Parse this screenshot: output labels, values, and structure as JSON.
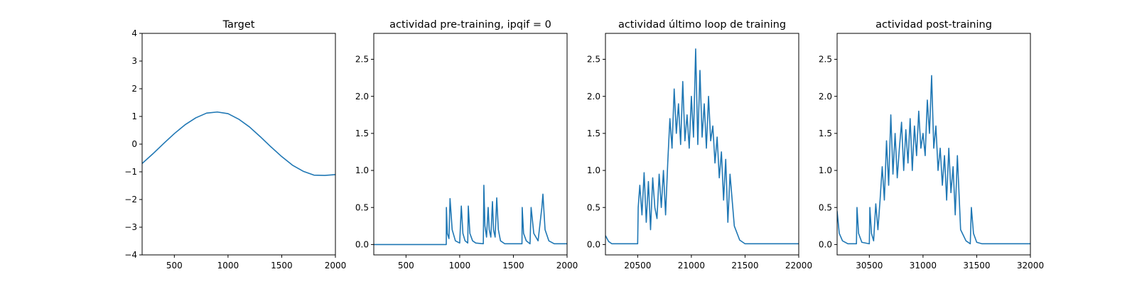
{
  "chart_data": [
    {
      "type": "line",
      "title": "Target",
      "xlim": [
        200,
        2000
      ],
      "ylim": [
        -4,
        4
      ],
      "xticks": [
        500,
        1000,
        1500,
        2000
      ],
      "yticks": [
        -4,
        -3,
        -2,
        -1,
        0,
        1,
        2,
        3,
        4
      ],
      "color": "#1f77b4",
      "series": [
        {
          "x": [
            200,
            300,
            400,
            500,
            600,
            700,
            800,
            900,
            1000,
            1100,
            1200,
            1300,
            1400,
            1500,
            1600,
            1700,
            1800,
            1900,
            2000
          ],
          "values": [
            -0.7,
            -0.35,
            0.02,
            0.38,
            0.7,
            0.95,
            1.12,
            1.16,
            1.1,
            0.9,
            0.62,
            0.27,
            -0.1,
            -0.45,
            -0.76,
            -0.98,
            -1.12,
            -1.13,
            -1.1
          ]
        }
      ]
    },
    {
      "type": "line",
      "title": "actividad pre-training, ipqif = 0",
      "xlim": [
        200,
        2000
      ],
      "ylim": [
        -0.14,
        2.85
      ],
      "xticks": [
        500,
        1000,
        1500,
        2000
      ],
      "yticks": [
        0.0,
        0.5,
        1.0,
        1.5,
        2.0,
        2.5
      ],
      "ytick_labels": [
        "0.0",
        "0.5",
        "1.0",
        "1.5",
        "2.0",
        "2.5"
      ],
      "color": "#1f77b4",
      "series": [
        {
          "x": [
            200,
            875,
            876,
            885,
            900,
            910,
            930,
            960,
            1000,
            1015,
            1030,
            1050,
            1075,
            1080,
            1095,
            1120,
            1150,
            1220,
            1225,
            1235,
            1250,
            1265,
            1275,
            1290,
            1305,
            1315,
            1330,
            1345,
            1360,
            1380,
            1420,
            1580,
            1582,
            1595,
            1620,
            1655,
            1665,
            1690,
            1730,
            1765,
            1775,
            1795,
            1830,
            1880,
            2000
          ],
          "values": [
            0,
            0,
            0.5,
            0.15,
            0.08,
            0.62,
            0.2,
            0.05,
            0.02,
            0.52,
            0.15,
            0.05,
            0.02,
            0.52,
            0.15,
            0.05,
            0.02,
            0.01,
            0.8,
            0.25,
            0.1,
            0.5,
            0.2,
            0.1,
            0.58,
            0.2,
            0.1,
            0.63,
            0.2,
            0.05,
            0.01,
            0.01,
            0.5,
            0.15,
            0.05,
            0.01,
            0.5,
            0.15,
            0.05,
            0.5,
            0.68,
            0.2,
            0.05,
            0.01,
            0.01
          ]
        }
      ]
    },
    {
      "type": "line",
      "title": "actividad último loop de training",
      "xlim": [
        20200,
        22000
      ],
      "ylim": [
        -0.14,
        2.85
      ],
      "xticks": [
        20500,
        21000,
        21500,
        22000
      ],
      "yticks": [
        0.0,
        0.5,
        1.0,
        1.5,
        2.0,
        2.5
      ],
      "ytick_labels": [
        "0.0",
        "0.5",
        "1.0",
        "1.5",
        "2.0",
        "2.5"
      ],
      "color": "#1f77b4",
      "series": [
        {
          "x": [
            20200,
            20230,
            20260,
            20300,
            20500,
            20505,
            20520,
            20540,
            20560,
            20580,
            20600,
            20620,
            20640,
            20660,
            20680,
            20700,
            20720,
            20740,
            20760,
            20780,
            20800,
            20820,
            20840,
            20860,
            20880,
            20900,
            20920,
            20940,
            20960,
            20980,
            21000,
            21020,
            21040,
            21060,
            21080,
            21100,
            21120,
            21140,
            21160,
            21180,
            21200,
            21220,
            21240,
            21260,
            21280,
            21300,
            21320,
            21340,
            21360,
            21400,
            21450,
            21500,
            22000
          ],
          "values": [
            0.12,
            0.04,
            0.01,
            0.01,
            0.01,
            0.5,
            0.8,
            0.4,
            0.97,
            0.3,
            0.85,
            0.2,
            0.9,
            0.5,
            0.35,
            0.95,
            0.5,
            1.0,
            0.4,
            1.1,
            1.7,
            1.3,
            2.1,
            1.5,
            1.9,
            1.35,
            2.2,
            1.4,
            1.75,
            1.3,
            2.0,
            1.45,
            2.64,
            1.35,
            2.35,
            1.45,
            1.9,
            1.3,
            2.0,
            1.4,
            1.6,
            1.1,
            1.45,
            0.9,
            1.25,
            0.6,
            1.15,
            0.3,
            0.95,
            0.25,
            0.06,
            0.01,
            0.01
          ]
        }
      ]
    },
    {
      "type": "line",
      "title": "actividad post-training",
      "xlim": [
        30200,
        32000
      ],
      "ylim": [
        -0.14,
        2.85
      ],
      "xticks": [
        30500,
        31000,
        31500,
        32000
      ],
      "yticks": [
        0.0,
        0.5,
        1.0,
        1.5,
        2.0,
        2.5
      ],
      "ytick_labels": [
        "0.0",
        "0.5",
        "1.0",
        "1.5",
        "2.0",
        "2.5"
      ],
      "color": "#1f77b4",
      "series": [
        {
          "x": [
            30200,
            30220,
            30250,
            30300,
            30380,
            30385,
            30400,
            30430,
            30500,
            30505,
            30520,
            30540,
            30560,
            30580,
            30600,
            30620,
            30640,
            30660,
            30680,
            30700,
            30720,
            30740,
            30760,
            30780,
            30800,
            30820,
            30840,
            30860,
            30880,
            30900,
            30920,
            30940,
            30960,
            30980,
            31000,
            31020,
            31040,
            31060,
            31080,
            31100,
            31120,
            31140,
            31160,
            31180,
            31200,
            31220,
            31240,
            31260,
            31280,
            31300,
            31320,
            31350,
            31400,
            31440,
            31450,
            31470,
            31500,
            31550,
            32000
          ],
          "values": [
            0.45,
            0.15,
            0.05,
            0.01,
            0.01,
            0.5,
            0.15,
            0.03,
            0.01,
            0.5,
            0.15,
            0.05,
            0.55,
            0.2,
            0.6,
            1.05,
            0.6,
            1.4,
            0.8,
            1.75,
            0.95,
            1.5,
            0.9,
            1.3,
            1.65,
            1.0,
            1.55,
            1.1,
            1.7,
            1.0,
            1.6,
            1.2,
            1.8,
            1.3,
            1.5,
            1.2,
            1.95,
            1.5,
            2.28,
            1.3,
            1.6,
            1.0,
            1.3,
            0.8,
            1.2,
            0.6,
            1.3,
            0.7,
            1.05,
            0.4,
            1.2,
            0.2,
            0.05,
            0.01,
            0.5,
            0.15,
            0.03,
            0.01,
            0.01
          ]
        }
      ]
    }
  ]
}
